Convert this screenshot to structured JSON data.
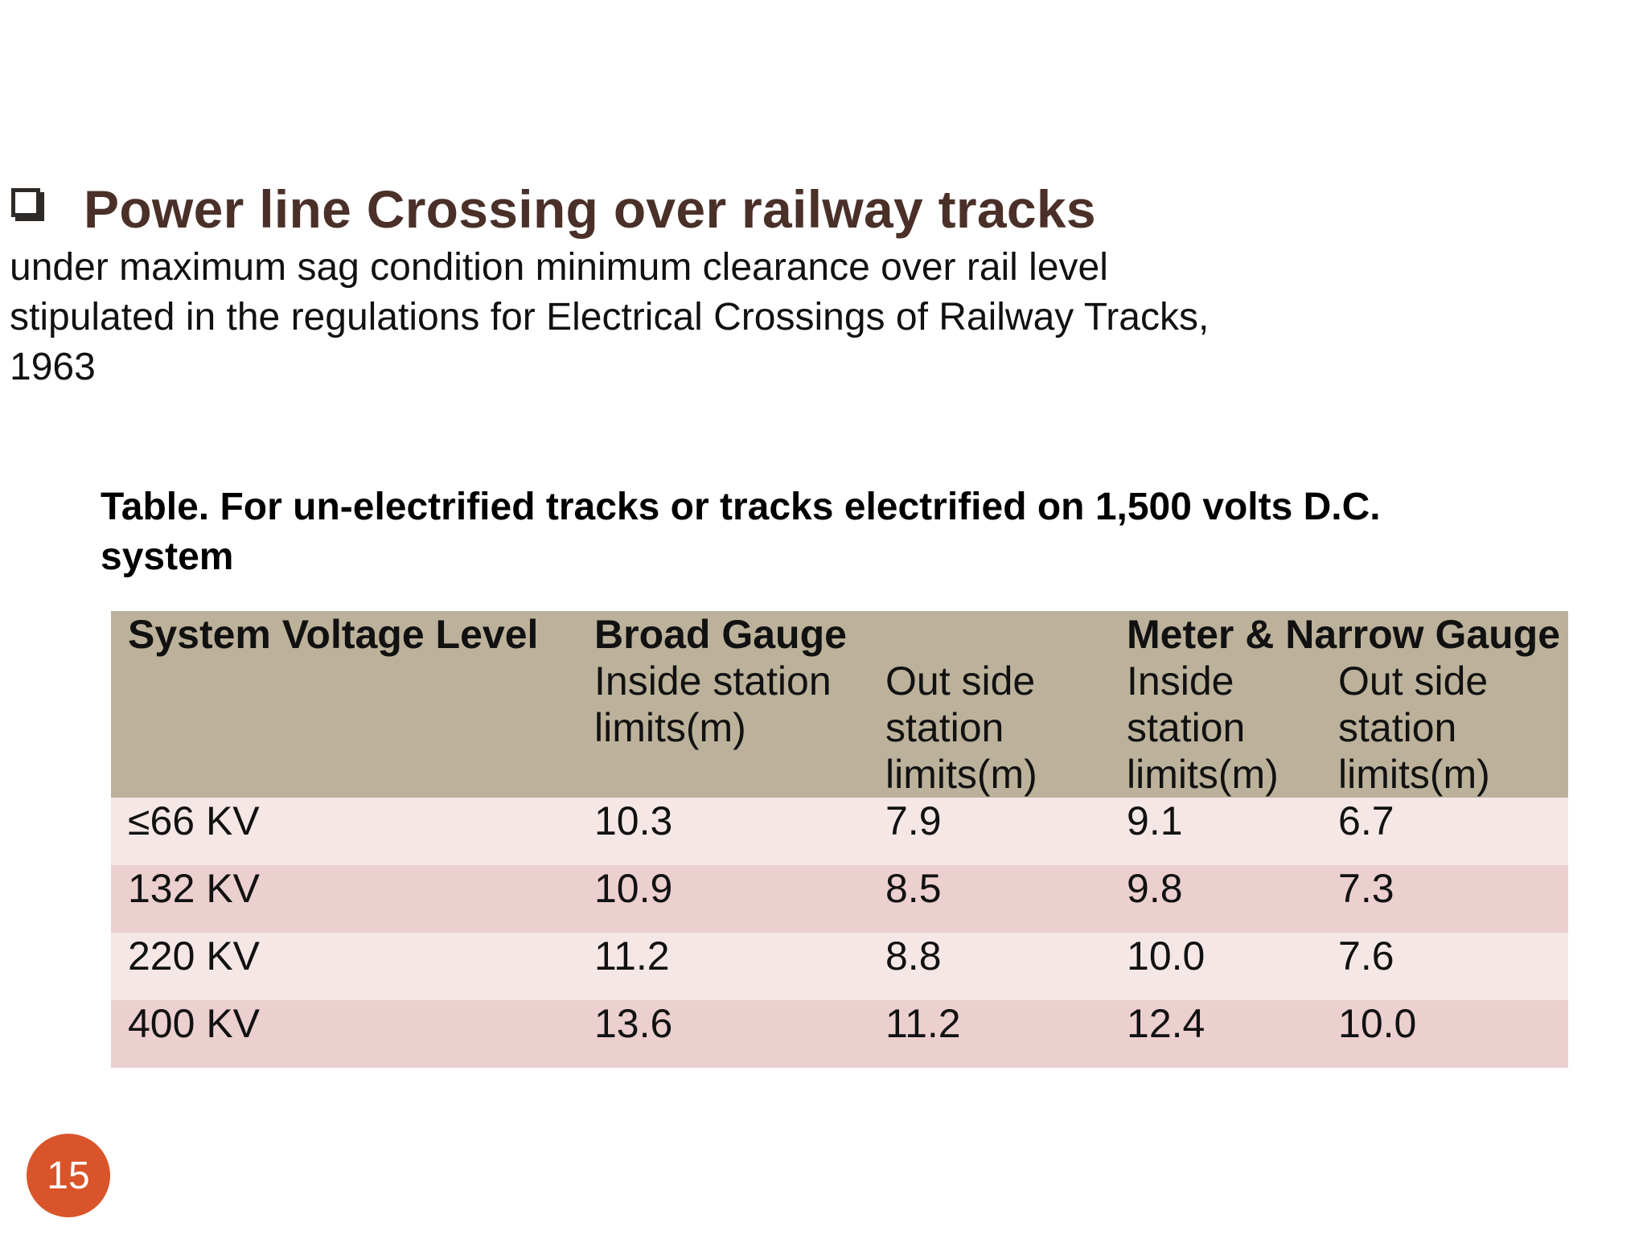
{
  "slide": {
    "title": "Power line Crossing over railway tracks",
    "intro_lines": [
      "under maximum sag condition minimum clearance over  rail level",
      "stipulated in the regulations for Electrical Crossings of Railway Tracks,",
      "1963"
    ],
    "table_caption_lines": [
      "Table. For un-electrified tracks or tracks electrified on 1,500 volts D.C.",
      "system"
    ],
    "page_number": "15",
    "colors": {
      "title": "#4a3028",
      "header_bg": "#bcb19a",
      "row_light": "#f6e7e7",
      "row_dark": "#eccfcf",
      "page_badge": "#d9542b"
    }
  },
  "table": {
    "header": {
      "voltage": "System Voltage Level",
      "broad": "Broad Gauge",
      "meter_narrow": "Meter & Narrow Gauge"
    },
    "subheaders": [
      "Inside station limits(m)",
      "Out side station limits(m)",
      "Inside station limits(m)",
      "Out side station limits(m)"
    ],
    "rows": [
      {
        "voltage": "≤66 KV",
        "bg_inside": "10.3",
        "bg_outside": "7.9",
        "mng_inside": "9.1",
        "mng_outside": "6.7"
      },
      {
        "voltage": "132 KV",
        "bg_inside": "10.9",
        "bg_outside": "8.5",
        "mng_inside": "9.8",
        "mng_outside": "7.3"
      },
      {
        "voltage": "220 KV",
        "bg_inside": "11.2",
        "bg_outside": "8.8",
        "mng_inside": "10.0",
        "mng_outside": "7.6"
      },
      {
        "voltage": "400 KV",
        "bg_inside": "13.6",
        "bg_outside": "11.2",
        "mng_inside": "12.4",
        "mng_outside": "10.0"
      }
    ]
  }
}
